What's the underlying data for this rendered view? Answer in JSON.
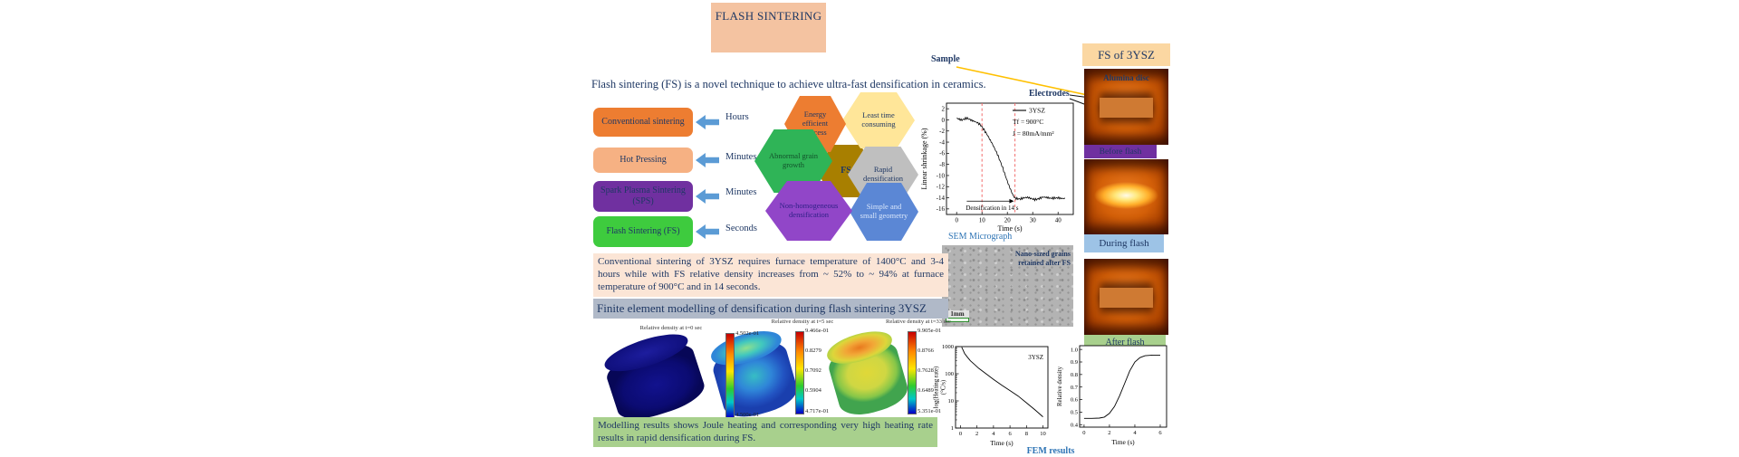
{
  "title": "FLASH SINTERING",
  "intro": "Flash sintering (FS) is a novel technique to achieve ultra-fast densification in ceramics.",
  "techniques": [
    {
      "name": "Conventional sintering",
      "time": "Hours",
      "color": "#ed7d31"
    },
    {
      "name": "Hot Pressing",
      "time": "Minutes / hours",
      "color": "#f6b183"
    },
    {
      "name": "Spark Plasma Sintering (SPS)",
      "time": "Minutes",
      "color": "#7030a0"
    },
    {
      "name": "Flash Sintering (FS)",
      "time": "Seconds",
      "color": "#3ecb3e"
    }
  ],
  "hexagons": [
    {
      "label": "Energy efficient process",
      "color": "#ed7d31"
    },
    {
      "label": "Least time consuming",
      "color": "#ffe699"
    },
    {
      "label": "Abnormal grain growth",
      "color": "#2fb457"
    },
    {
      "label": "Rapid densification",
      "color": "#bfbfbf"
    },
    {
      "label": "Non-homogeneous densification",
      "color": "#9146c8"
    },
    {
      "label": "Simple and small geometry",
      "color": "#5b87d5"
    }
  ],
  "fs_hexagon": {
    "label": "FS",
    "color": "#a87f00"
  },
  "sample_label": "Sample",
  "electrodes_label": "Electrodes",
  "sem": {
    "caption": "SEM Micrograph",
    "overlay": "Nano-sized grains retained after FS",
    "scalebar": "1mm"
  },
  "right_column": {
    "header": "FS of 3YSZ",
    "photo1_label": "Alumina disc",
    "banners": [
      {
        "label": "Before flash",
        "color": "#7030a0"
      },
      {
        "label": "During flash",
        "color": "#9dc3e6"
      },
      {
        "label": "After flash",
        "color": "#a8d08d"
      }
    ]
  },
  "conventional_note": "Conventional sintering of 3YSZ requires furnace temperature of 1400°C and 3-4 hours while with FS relative density increases from ~ 52% to ~ 94% at furnace temperature of 900°C and in 14 seconds.",
  "fem_header": "Finite element modelling of densification during flash sintering 3YSZ",
  "fem_plots": [
    {
      "caption": "Relative density at t=0 sec",
      "colorbar_labels": [
        "4.502e-01",
        "4.500e-01"
      ]
    },
    {
      "caption": "Relative density at t=5 sec",
      "colorbar_labels": [
        "9.466e-01",
        "0.8279",
        "0.7092",
        "0.5904",
        "4.717e-01"
      ]
    },
    {
      "caption": "Relative density at t=33 sec",
      "colorbar_labels": [
        "9.905e-01",
        "0.8766",
        "0.7628",
        "0.6489",
        "5.351e-01"
      ]
    }
  ],
  "modelling_note": "Modelling results shows Joule heating and corresponding very high heating rate results in rapid densification during FS.",
  "fem_results_label": "FEM results",
  "colors": {
    "navy": "#1f3864",
    "label_blue": "#2e74b5",
    "arrow_blue": "#5b9bd5",
    "title_bg": "#f4c3a1",
    "note_bg": "#fbe5d6",
    "fem_header_bg": "#b0b9c8",
    "green_bg": "#a8d08d",
    "right_header_bg": "#fbd7a2"
  },
  "chart_data": [
    {
      "id": "linear_shrinkage",
      "type": "line",
      "title": "",
      "xlabel": "Time (s)",
      "ylabel": "Linear shrinkage (%)",
      "xlim": [
        -4,
        46
      ],
      "ylim": [
        -17,
        3
      ],
      "xticks": [
        0,
        10,
        20,
        30,
        40
      ],
      "yticks": [
        2,
        0,
        -2,
        -4,
        -6,
        -8,
        -10,
        -12,
        -14,
        -16
      ],
      "legend": [
        "3YSZ",
        "Tf = 900°C",
        "J = 80mA/mm²"
      ],
      "legend_position": "top-right",
      "dashed_x": [
        10,
        23
      ],
      "annotation": "Densification in 14 s",
      "noise": 0.35,
      "points": [
        [
          0,
          0.3
        ],
        [
          2,
          0.1
        ],
        [
          4,
          0.4
        ],
        [
          6,
          -0.2
        ],
        [
          8,
          -0.6
        ],
        [
          9,
          -0.8
        ],
        [
          10,
          -1.2
        ],
        [
          12,
          -2.5
        ],
        [
          14,
          -4.2
        ],
        [
          16,
          -6.2
        ],
        [
          18,
          -8.5
        ],
        [
          20,
          -11
        ],
        [
          22,
          -13.2
        ],
        [
          23,
          -14
        ],
        [
          25,
          -14.3
        ],
        [
          28,
          -14
        ],
        [
          31,
          -14.2
        ],
        [
          34,
          -13.9
        ],
        [
          37,
          -14.2
        ],
        [
          40,
          -13.9
        ],
        [
          43,
          -14.1
        ]
      ]
    },
    {
      "id": "heating_rate",
      "type": "line",
      "xlabel": "Time (s)",
      "ylabel": "log(Heating rate) (°C/s)",
      "ylabel_lines": [
        "log(Heating rate)",
        "(°C/s)"
      ],
      "series_label": "3YSZ",
      "yscale": "log",
      "xlim": [
        -0.6,
        10.6
      ],
      "ylim": [
        1,
        1000
      ],
      "xticks": [
        0,
        2,
        4,
        6,
        8,
        10
      ],
      "yticks": [
        1,
        10,
        100,
        1000
      ],
      "points": [
        [
          0.15,
          950
        ],
        [
          0.3,
          760
        ],
        [
          0.5,
          560
        ],
        [
          0.8,
          420
        ],
        [
          1.2,
          300
        ],
        [
          1.7,
          220
        ],
        [
          2.2,
          160
        ],
        [
          3,
          105
        ],
        [
          4,
          62
        ],
        [
          5,
          38
        ],
        [
          6,
          24
        ],
        [
          7,
          15
        ],
        [
          8,
          8.5
        ],
        [
          9,
          4.8
        ],
        [
          10,
          2.6
        ]
      ]
    },
    {
      "id": "relative_density",
      "type": "line",
      "xlabel": "Time (s)",
      "ylabel": "Relative density",
      "xlim": [
        -0.35,
        6.5
      ],
      "ylim": [
        0.38,
        1.03
      ],
      "xticks": [
        0,
        2,
        4,
        6
      ],
      "yticks": [
        0.4,
        0.5,
        0.6,
        0.7,
        0.8,
        0.9,
        1.0
      ],
      "points": [
        [
          0,
          0.45
        ],
        [
          0.6,
          0.45
        ],
        [
          1.2,
          0.452
        ],
        [
          1.6,
          0.46
        ],
        [
          2,
          0.49
        ],
        [
          2.4,
          0.545
        ],
        [
          2.8,
          0.63
        ],
        [
          3.2,
          0.73
        ],
        [
          3.6,
          0.83
        ],
        [
          4,
          0.9
        ],
        [
          4.4,
          0.935
        ],
        [
          4.8,
          0.95
        ],
        [
          5.4,
          0.955
        ],
        [
          6,
          0.955
        ]
      ]
    }
  ]
}
